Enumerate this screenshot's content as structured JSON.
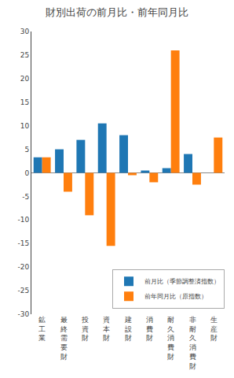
{
  "chart_data": {
    "type": "bar",
    "title": "財別出荷の前月比・前年同月比",
    "categories": [
      "鉱\n工\n業",
      "最\n終\n需\n要\n財",
      "投\n資\n財",
      "資\n本\n財",
      "建\n設\n財",
      "消\n費\n財",
      "耐\n久\n消\n費\n財",
      "非\n耐\n久\n消\n費\n財",
      "生\n産\n財"
    ],
    "series": [
      {
        "name": "前月比（季節調整済指数）",
        "values": [
          3.3,
          5.0,
          7.0,
          10.5,
          8.0,
          0.5,
          1.0,
          4.0,
          0.0
        ]
      },
      {
        "name": "前年同月比（原指数）",
        "values": [
          3.3,
          -4.0,
          -9.0,
          -15.5,
          -0.5,
          -2.0,
          26.0,
          -2.5,
          7.5
        ]
      }
    ],
    "ylim": [
      -30,
      30
    ],
    "yticks": [
      -30,
      -25,
      -20,
      -15,
      -10,
      -5,
      0,
      5,
      10,
      15,
      20,
      25,
      30
    ],
    "grid": false,
    "legend": "lower right"
  }
}
